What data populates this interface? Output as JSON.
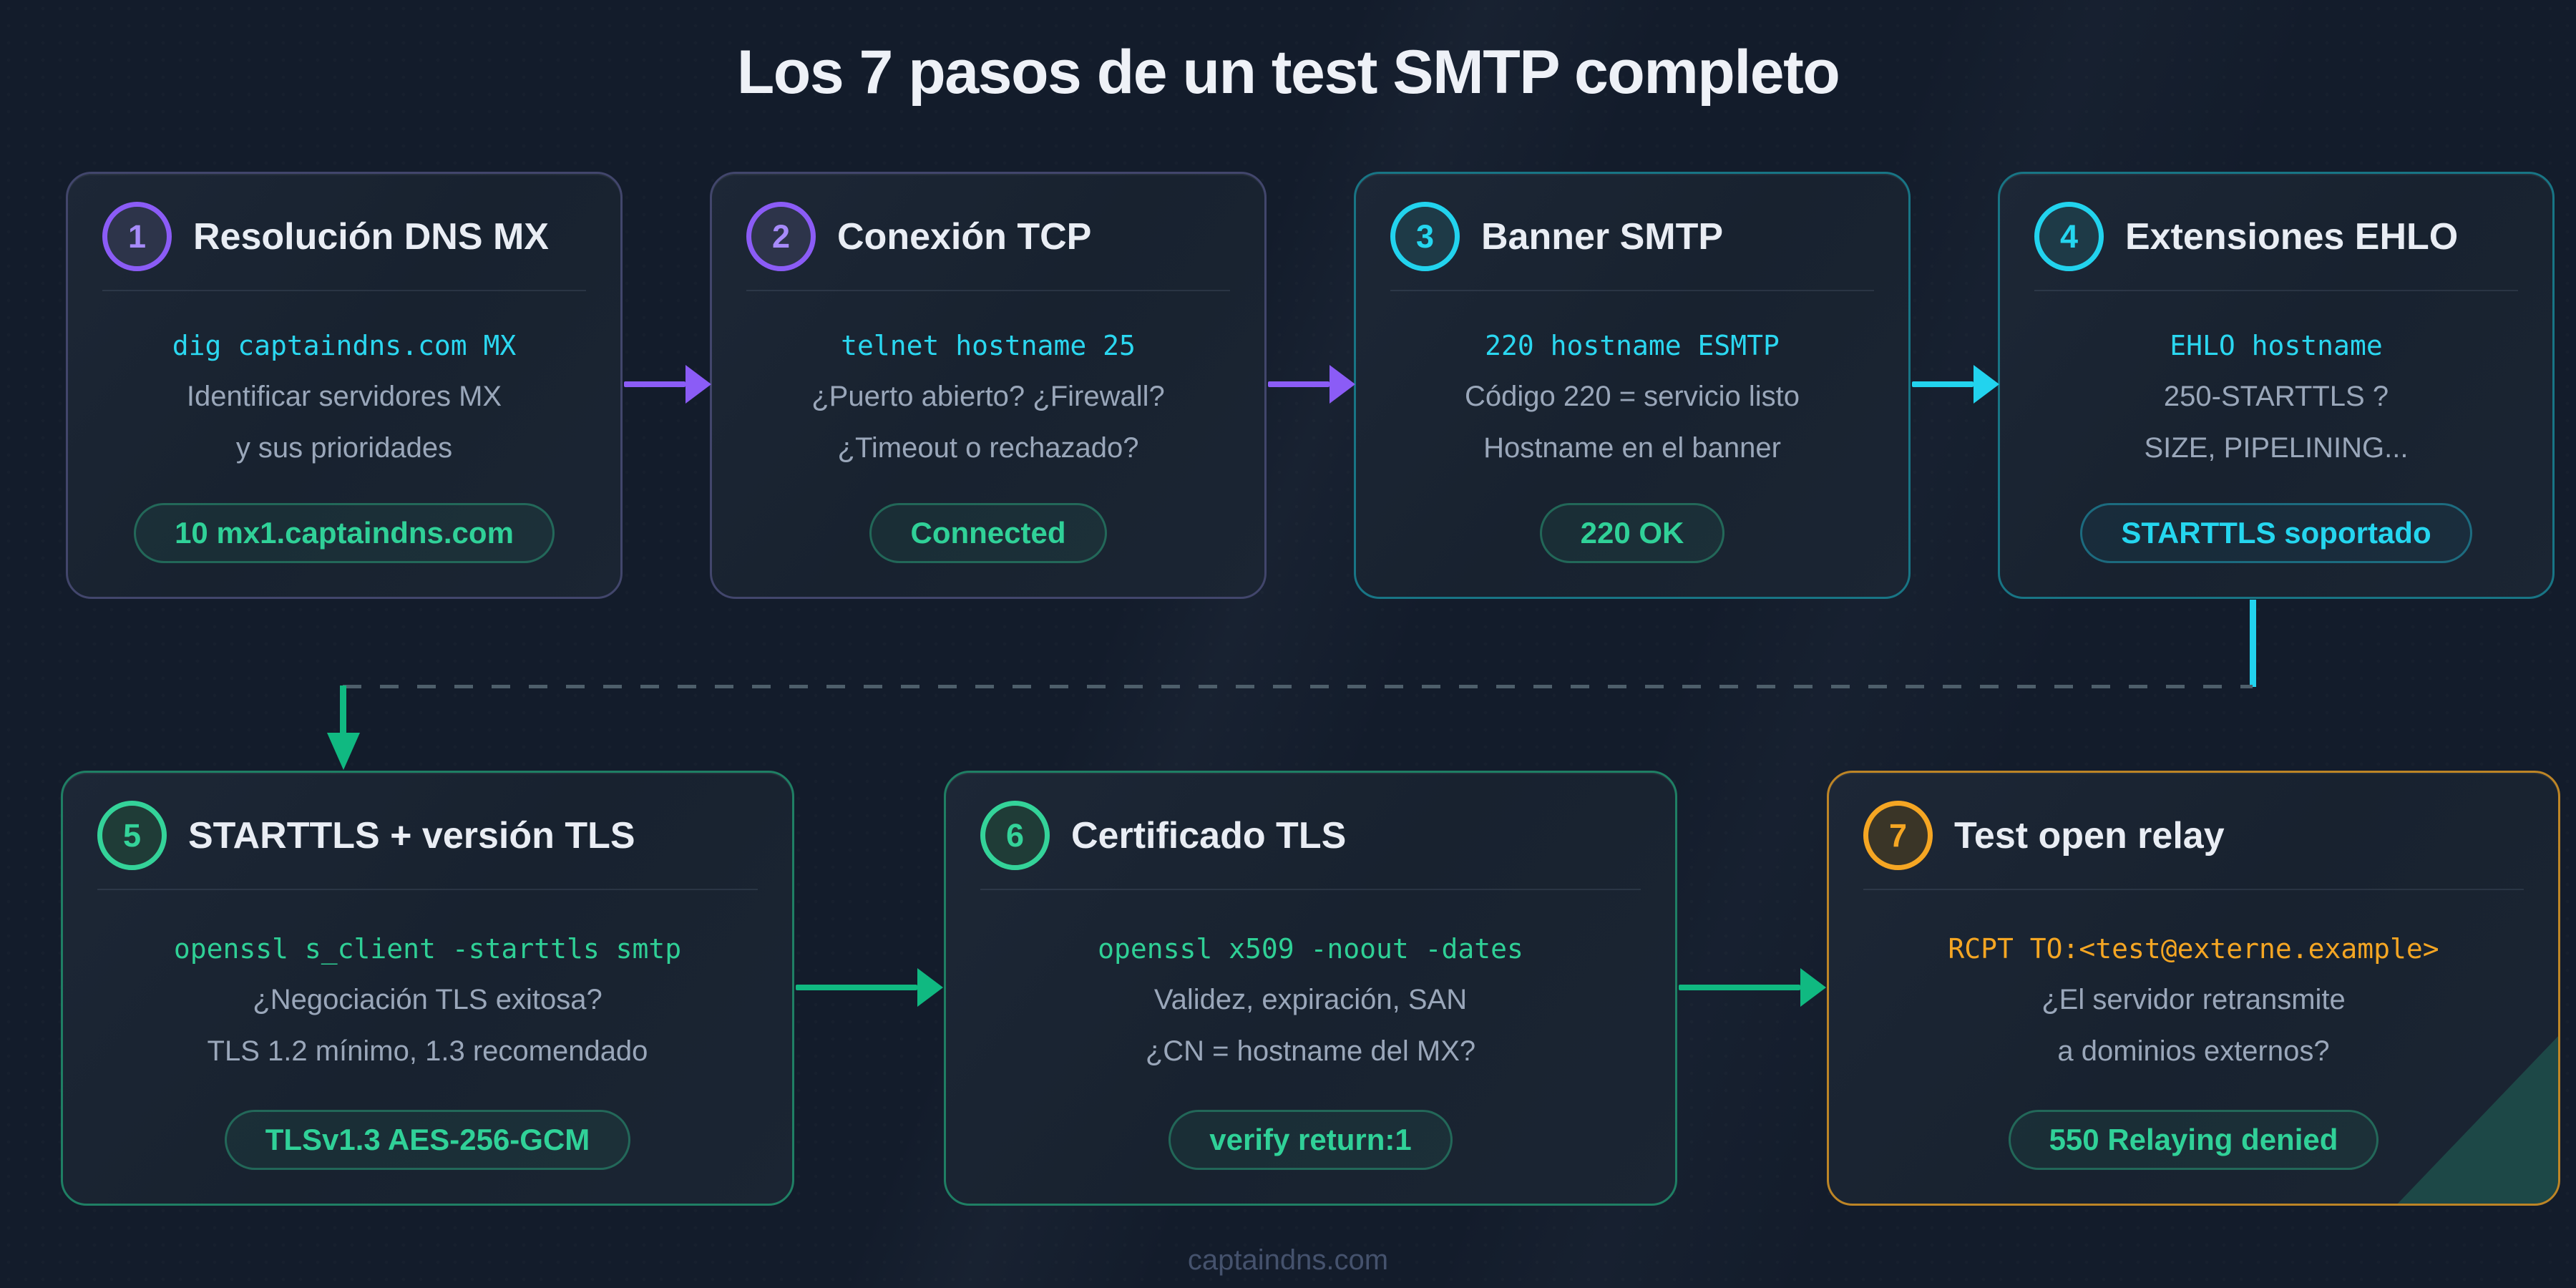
{
  "page": {
    "title": "Los 7 pasos de un test SMTP completo",
    "footer": "captaindns.com"
  },
  "colors": {
    "background": "#131c2b",
    "accent_purple": "#8b5cf6",
    "accent_cyan": "#22d3ee",
    "accent_green": "#34d399",
    "accent_amber": "#f5a623",
    "arrow_green": "#10b981",
    "badge_green_text": "#30d198",
    "code_cyan": "#2bd7f0"
  },
  "steps": [
    {
      "number": "1",
      "title": "Resolución DNS MX",
      "code": "dig captaindns.com MX",
      "desc1": "Identificar servidores MX",
      "desc2": "y sus prioridades",
      "badge": "10 mx1.captaindns.com",
      "accent": "purple"
    },
    {
      "number": "2",
      "title": "Conexión TCP",
      "code": "telnet hostname 25",
      "desc1": "¿Puerto abierto? ¿Firewall?",
      "desc2": "¿Timeout o rechazado?",
      "badge": "Connected",
      "accent": "purple"
    },
    {
      "number": "3",
      "title": "Banner SMTP",
      "code": "220 hostname ESMTP",
      "desc1": "Código 220 = servicio listo",
      "desc2": "Hostname en el banner",
      "badge": "220 OK",
      "accent": "cyan"
    },
    {
      "number": "4",
      "title": "Extensiones EHLO",
      "code": "EHLO hostname",
      "desc1": "250-STARTTLS ?",
      "desc2": "SIZE, PIPELINING...",
      "badge": "STARTTLS soportado",
      "accent": "cyan"
    },
    {
      "number": "5",
      "title": "STARTTLS + versión TLS",
      "code": "openssl s_client -starttls smtp",
      "desc1": "¿Negociación TLS exitosa?",
      "desc2": "TLS 1.2 mínimo, 1.3 recomendado",
      "badge": "TLSv1.3 AES-256-GCM",
      "accent": "green"
    },
    {
      "number": "6",
      "title": "Certificado TLS",
      "code": "openssl x509 -noout -dates",
      "desc1": "Validez, expiración, SAN",
      "desc2": "¿CN = hostname del MX?",
      "badge": "verify return:1",
      "accent": "green"
    },
    {
      "number": "7",
      "title": "Test open relay",
      "code": "RCPT TO:<test@externe.example>",
      "desc1": "¿El servidor retransmite",
      "desc2": "a dominios externos?",
      "badge": "550 Relaying denied",
      "accent": "amber"
    }
  ]
}
